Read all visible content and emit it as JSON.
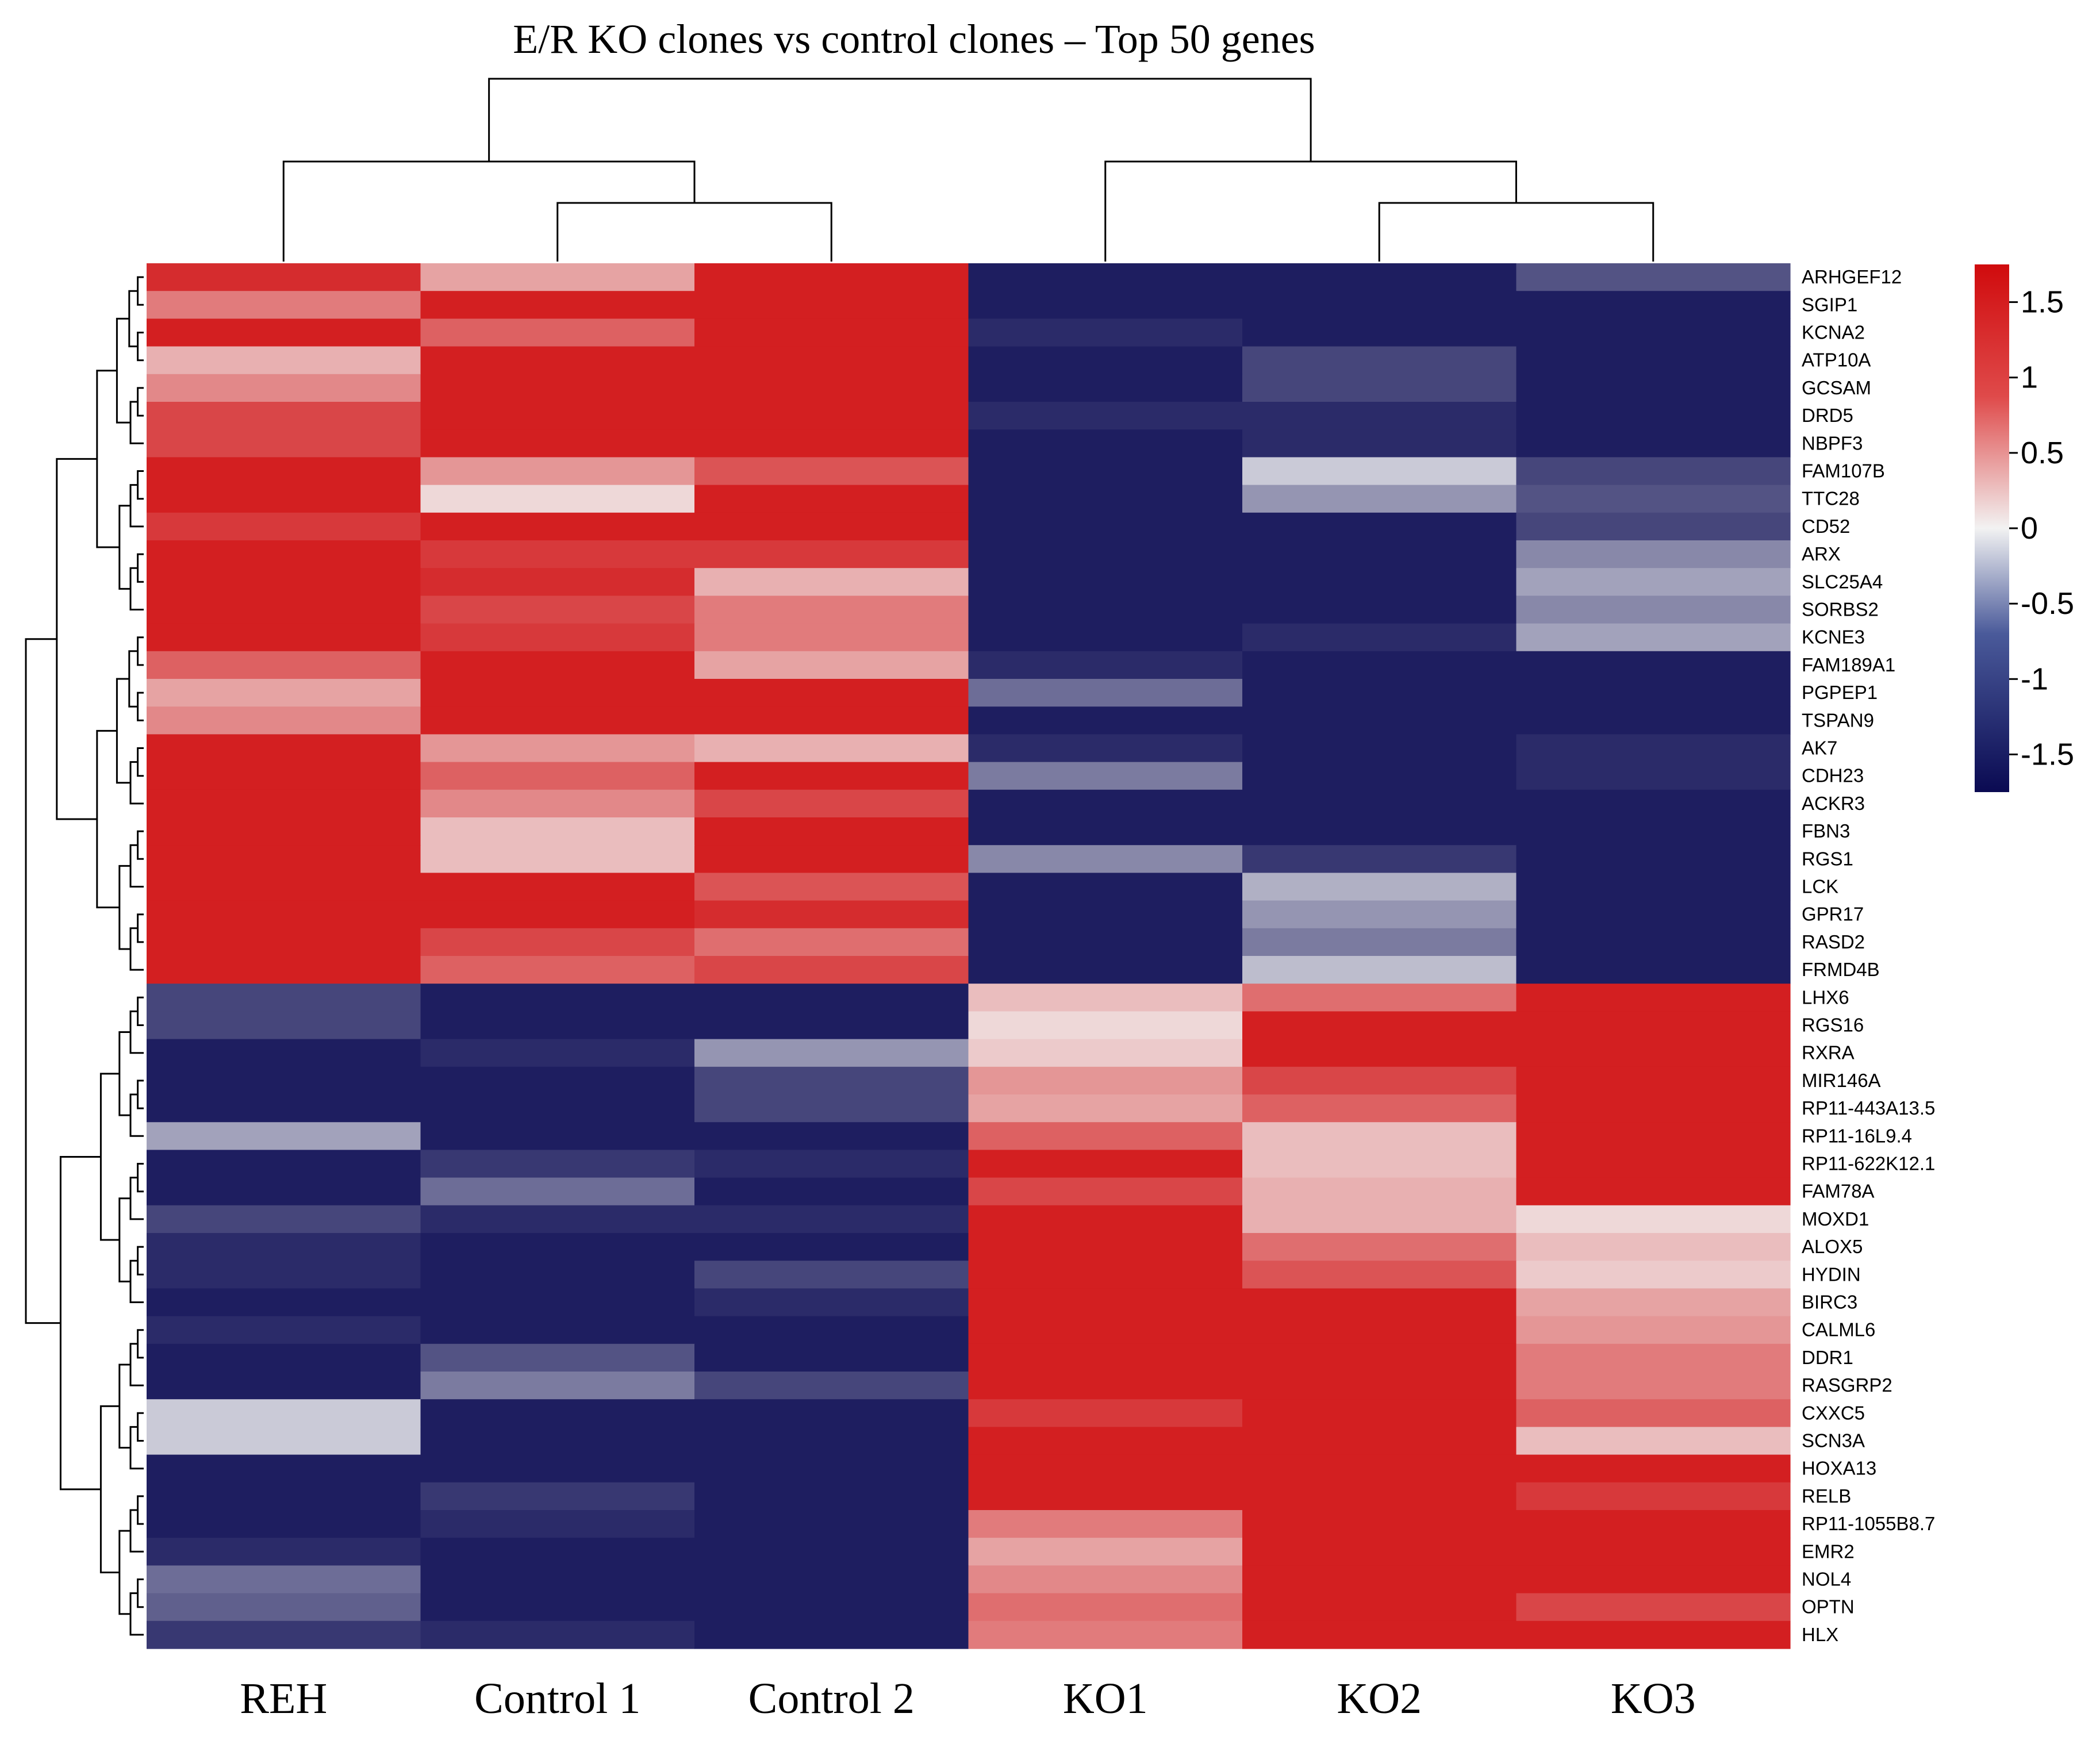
{
  "chart_data": {
    "type": "heatmap",
    "title": "E/R KO clones vs control clones – Top 50 genes",
    "columns": [
      "REH",
      "Control 1",
      "Control 2",
      "KO1",
      "KO2",
      "KO3"
    ],
    "rows": [
      "ARHGEF12",
      "SGIP1",
      "KCNA2",
      "ATP10A",
      "GCSAM",
      "DRD5",
      "NBPF3",
      "FAM107B",
      "TTC28",
      "CD52",
      "ARX",
      "SLC25A4",
      "SORBS2",
      "KCNE3",
      "FAM189A1",
      "PGPEP1",
      "TSPAN9",
      "AK7",
      "CDH23",
      "ACKR3",
      "FBN3",
      "RGS1",
      "LCK",
      "GPR17",
      "RASD2",
      "FRMD4B",
      "LHX6",
      "RGS16",
      "RXRA",
      "MIR146A",
      "RP11-443A13.5",
      "RP11-16L9.4",
      "RP11-622K12.1",
      "FAM78A",
      "MOXD1",
      "ALOX5",
      "HYDIN",
      "BIRC3",
      "CALML6",
      "DDR1",
      "RASGRP2",
      "CXXC5",
      "SCN3A",
      "HOXA13",
      "RELB",
      "RP11-1055B8.7",
      "EMR2",
      "NOL4",
      "OPTN",
      "HLX"
    ],
    "values": [
      [
        1.5,
        0.6,
        1.6,
        -1.6,
        -1.6,
        -1.2
      ],
      [
        0.9,
        1.6,
        1.6,
        -1.6,
        -1.6,
        -1.6
      ],
      [
        1.6,
        1.1,
        1.6,
        -1.5,
        -1.6,
        -1.6
      ],
      [
        0.5,
        1.6,
        1.6,
        -1.6,
        -1.3,
        -1.6
      ],
      [
        0.8,
        1.6,
        1.6,
        -1.6,
        -1.3,
        -1.6
      ],
      [
        1.3,
        1.6,
        1.6,
        -1.5,
        -1.5,
        -1.6
      ],
      [
        1.3,
        1.6,
        1.6,
        -1.6,
        -1.5,
        -1.6
      ],
      [
        1.6,
        0.7,
        1.2,
        -1.6,
        -0.3,
        -1.3
      ],
      [
        1.6,
        0.2,
        1.6,
        -1.6,
        -0.7,
        -1.2
      ],
      [
        1.4,
        1.6,
        1.6,
        -1.6,
        -1.6,
        -1.3
      ],
      [
        1.6,
        1.4,
        1.4,
        -1.6,
        -1.6,
        -0.8
      ],
      [
        1.6,
        1.5,
        0.5,
        -1.6,
        -1.6,
        -0.6
      ],
      [
        1.6,
        1.3,
        0.9,
        -1.6,
        -1.6,
        -0.8
      ],
      [
        1.6,
        1.4,
        0.9,
        -1.6,
        -1.5,
        -0.6
      ],
      [
        1.1,
        1.6,
        0.6,
        -1.5,
        -1.6,
        -1.6
      ],
      [
        0.6,
        1.6,
        1.6,
        -1.0,
        -1.6,
        -1.6
      ],
      [
        0.8,
        1.6,
        1.6,
        -1.6,
        -1.6,
        -1.6
      ],
      [
        1.6,
        0.7,
        0.5,
        -1.5,
        -1.6,
        -1.5
      ],
      [
        1.6,
        1.1,
        1.6,
        -0.9,
        -1.6,
        -1.5
      ],
      [
        1.6,
        0.8,
        1.3,
        -1.6,
        -1.6,
        -1.6
      ],
      [
        1.6,
        0.4,
        1.6,
        -1.6,
        -1.6,
        -1.6
      ],
      [
        1.6,
        0.4,
        1.6,
        -0.8,
        -1.4,
        -1.6
      ],
      [
        1.6,
        1.6,
        1.2,
        -1.6,
        -0.5,
        -1.6
      ],
      [
        1.6,
        1.6,
        1.5,
        -1.6,
        -0.7,
        -1.6
      ],
      [
        1.6,
        1.3,
        1.0,
        -1.6,
        -0.9,
        -1.6
      ],
      [
        1.6,
        1.1,
        1.3,
        -1.6,
        -0.4,
        -1.6
      ],
      [
        -1.3,
        -1.6,
        -1.6,
        0.4,
        1.0,
        1.6
      ],
      [
        -1.3,
        -1.6,
        -1.6,
        0.2,
        1.6,
        1.6
      ],
      [
        -1.6,
        -1.5,
        -0.7,
        0.3,
        1.6,
        1.6
      ],
      [
        -1.6,
        -1.6,
        -1.3,
        0.7,
        1.3,
        1.6
      ],
      [
        -1.6,
        -1.6,
        -1.3,
        0.6,
        1.1,
        1.6
      ],
      [
        -0.6,
        -1.6,
        -1.6,
        1.1,
        0.4,
        1.6
      ],
      [
        -1.6,
        -1.4,
        -1.5,
        1.6,
        0.4,
        1.6
      ],
      [
        -1.6,
        -1.0,
        -1.6,
        1.3,
        0.5,
        1.6
      ],
      [
        -1.3,
        -1.5,
        -1.5,
        1.6,
        0.5,
        0.2
      ],
      [
        -1.5,
        -1.6,
        -1.6,
        1.6,
        1.0,
        0.4
      ],
      [
        -1.5,
        -1.6,
        -1.3,
        1.6,
        1.2,
        0.3
      ],
      [
        -1.6,
        -1.6,
        -1.5,
        1.6,
        1.6,
        0.6
      ],
      [
        -1.5,
        -1.6,
        -1.6,
        1.6,
        1.6,
        0.7
      ],
      [
        -1.6,
        -1.2,
        -1.6,
        1.6,
        1.6,
        0.9
      ],
      [
        -1.6,
        -0.9,
        -1.3,
        1.6,
        1.6,
        0.9
      ],
      [
        -0.3,
        -1.6,
        -1.6,
        1.4,
        1.6,
        1.1
      ],
      [
        -0.3,
        -1.6,
        -1.6,
        1.6,
        1.6,
        0.4
      ],
      [
        -1.6,
        -1.6,
        -1.6,
        1.6,
        1.6,
        1.6
      ],
      [
        -1.6,
        -1.4,
        -1.6,
        1.6,
        1.6,
        1.4
      ],
      [
        -1.6,
        -1.5,
        -1.6,
        0.9,
        1.6,
        1.6
      ],
      [
        -1.5,
        -1.6,
        -1.6,
        0.6,
        1.6,
        1.6
      ],
      [
        -1.0,
        -1.6,
        -1.6,
        0.8,
        1.6,
        1.6
      ],
      [
        -1.1,
        -1.6,
        -1.6,
        1.0,
        1.6,
        1.3
      ],
      [
        -1.4,
        -1.5,
        -1.6,
        0.9,
        1.6,
        1.6
      ]
    ],
    "color_scale": {
      "min": -1.75,
      "max": 1.75,
      "low_color": "#0a0a52",
      "mid_color": "#f2f2f2",
      "high_color": "#d00b0d"
    },
    "legend": {
      "ticks": [
        "1.5",
        "1",
        "0.5",
        "0",
        "-0.5",
        "-1",
        "-1.5"
      ],
      "tick_values": [
        1.5,
        1,
        0.5,
        0,
        -0.5,
        -1,
        -1.5
      ],
      "placement": "right"
    },
    "column_dendrogram": {
      "merges": [
        [
          1,
          2,
          1
        ],
        [
          0,
          -1,
          2
        ],
        [
          4,
          5,
          1
        ],
        [
          3,
          -3,
          2
        ],
        [
          -2,
          -4,
          4
        ]
      ]
    },
    "row_dendrogram": "hierarchical clustering of 50 genes (two main clusters: rows 1-26 and rows 27-50)"
  }
}
